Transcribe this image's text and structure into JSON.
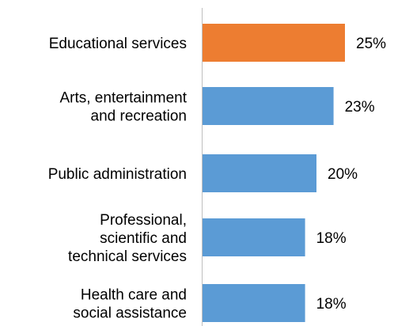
{
  "chart_data": {
    "type": "bar",
    "orientation": "horizontal",
    "title": "",
    "xlabel": "",
    "ylabel": "",
    "grid": false,
    "xlim": [
      0,
      25
    ],
    "categories": [
      "Educational services",
      "Arts, entertainment and recreation",
      "Public administration",
      "Professional, scientific and technical services",
      "Health care and social assistance"
    ],
    "category_label_lines": [
      [
        "Educational services"
      ],
      [
        "Arts, entertainment",
        "and recreation"
      ],
      [
        "Public administration"
      ],
      [
        "Professional,",
        "scientific and",
        "technical services"
      ],
      [
        "Health care and",
        "social assistance"
      ]
    ],
    "values": [
      25,
      23,
      20,
      18,
      18
    ],
    "value_labels": [
      "25%",
      "23%",
      "20%",
      "18%",
      "18%"
    ],
    "bar_colors": [
      "#ED7D31",
      "#5B9BD5",
      "#5B9BD5",
      "#5B9BD5",
      "#5B9BD5"
    ],
    "axis_color": "#BFBFBF"
  }
}
